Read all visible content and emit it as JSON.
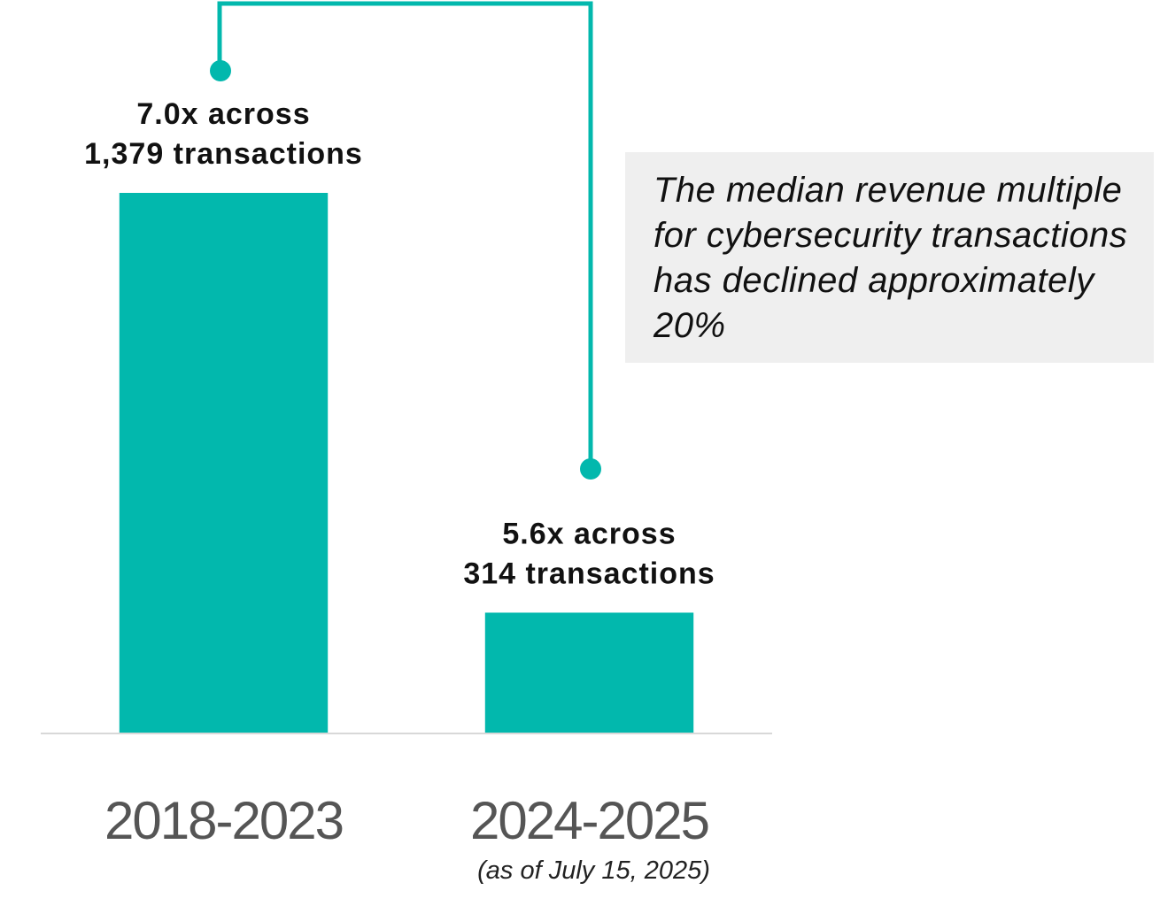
{
  "chart_data": {
    "type": "bar",
    "categories": [
      "2018-2023",
      "2024-2025"
    ],
    "category_notes": [
      null,
      "(as of July 15, 2025)"
    ],
    "values": [
      7.0,
      5.6
    ],
    "value_labels": [
      "7.0x across",
      "5.6x across"
    ],
    "transaction_labels": [
      "1,379 transactions",
      "314 transactions"
    ],
    "color": "#02b8ad",
    "ylim": [
      5.2,
      7.0
    ],
    "annotation": "The median revenue multiple for cybersecurity transactions has declined approximately 20%"
  }
}
